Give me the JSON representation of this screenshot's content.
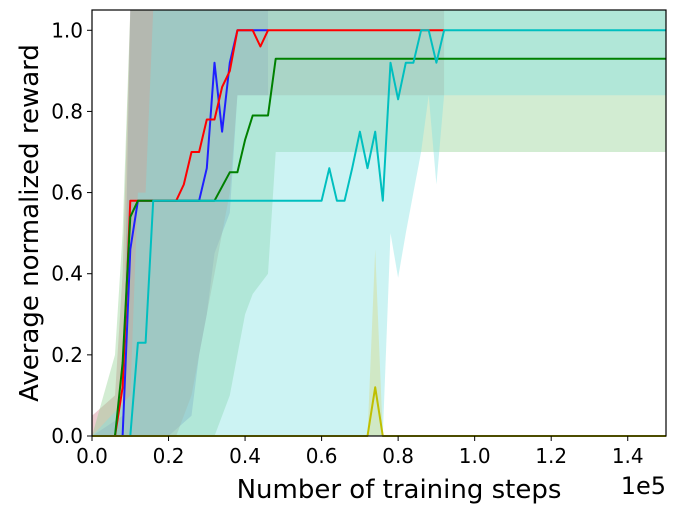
{
  "chart_data": {
    "type": "line",
    "xlabel": "Number of training steps",
    "ylabel": "Average normalized reward",
    "x_scale_label": "1e5",
    "xlim": [
      0,
      150000
    ],
    "ylim": [
      0,
      1.05
    ],
    "x_ticks": [
      0,
      20000,
      40000,
      60000,
      80000,
      100000,
      120000,
      140000
    ],
    "x_tick_labels": [
      "0.0",
      "0.2",
      "0.4",
      "0.6",
      "0.8",
      "1.0",
      "1.2",
      "1.4"
    ],
    "y_ticks": [
      0,
      0.2,
      0.4,
      0.6,
      0.8,
      1.0
    ],
    "y_tick_labels": [
      "0.0",
      "0.2",
      "0.4",
      "0.6",
      "0.8",
      "1.0"
    ],
    "grid": false,
    "series": [
      {
        "color": "#1f1fff",
        "band_color": "#7d6ad6",
        "x": [
          0,
          8000,
          10000,
          12000,
          14000,
          16000,
          20000,
          26000,
          28000,
          30000,
          32000,
          34000,
          36000,
          38000,
          42000,
          44000,
          46000
        ],
        "y": [
          0,
          0,
          0.46,
          0.58,
          0.58,
          0.58,
          0.58,
          0.58,
          0.58,
          0.66,
          0.92,
          0.75,
          0.92,
          1.0,
          1.0,
          1.0,
          1.0
        ],
        "lower": [
          0,
          0,
          0,
          0,
          0,
          0,
          0,
          0.05,
          0.2,
          0.3,
          0.45,
          0.5,
          0.55,
          0.84,
          0.84,
          0.84,
          0.84
        ],
        "upper": [
          0,
          0.05,
          1.05,
          1.05,
          1.05,
          1.05,
          1.05,
          1.05,
          1.05,
          1.05,
          1.05,
          1.05,
          1.05,
          1.05,
          1.05,
          1.05,
          1.05
        ]
      },
      {
        "color": "#ff0000",
        "band_color": "#d17f8c",
        "x": [
          0,
          6000,
          8000,
          10000,
          12000,
          14000,
          18000,
          22000,
          24000,
          26000,
          28000,
          30000,
          32000,
          34000,
          36000,
          38000,
          42000,
          44000,
          46000,
          92000
        ],
        "y": [
          0,
          0,
          0.12,
          0.58,
          0.58,
          0.58,
          0.58,
          0.58,
          0.62,
          0.7,
          0.7,
          0.78,
          0.78,
          0.86,
          0.9,
          1.0,
          1.0,
          0.96,
          1.0,
          1.0
        ],
        "lower": [
          0,
          0,
          0,
          0,
          0,
          0,
          0,
          0,
          0.05,
          0.1,
          0.2,
          0.3,
          0.4,
          0.5,
          0.6,
          0.84,
          0.84,
          0.84,
          0.84,
          0.84
        ],
        "upper": [
          0.05,
          0.1,
          0.4,
          1.05,
          1.05,
          1.05,
          1.05,
          1.05,
          1.05,
          1.05,
          1.05,
          1.05,
          1.05,
          1.05,
          1.05,
          1.05,
          1.05,
          1.05,
          1.05,
          1.05
        ]
      },
      {
        "color": "#008000",
        "band_color": "#8fcf8f",
        "x": [
          0,
          6000,
          8000,
          10000,
          12000,
          16000,
          30000,
          32000,
          36000,
          38000,
          40000,
          42000,
          46000,
          48000,
          150000
        ],
        "y": [
          0,
          0,
          0.18,
          0.54,
          0.58,
          0.58,
          0.58,
          0.58,
          0.65,
          0.65,
          0.73,
          0.79,
          0.79,
          0.93,
          0.93
        ],
        "lower": [
          0,
          0,
          0,
          0,
          0,
          0,
          0,
          0,
          0.1,
          0.2,
          0.3,
          0.35,
          0.4,
          0.7,
          0.7
        ],
        "upper": [
          0,
          0.2,
          0.5,
          1.05,
          1.05,
          1.05,
          1.05,
          1.05,
          1.05,
          1.05,
          1.05,
          1.05,
          1.05,
          1.05,
          1.05
        ]
      },
      {
        "color": "#00bfbf",
        "band_color": "#80e0e0",
        "x": [
          0,
          10000,
          12000,
          14000,
          16000,
          60000,
          62000,
          64000,
          66000,
          68000,
          70000,
          72000,
          74000,
          76000,
          78000,
          80000,
          82000,
          84000,
          86000,
          88000,
          90000,
          92000,
          150000
        ],
        "y": [
          0,
          0,
          0.23,
          0.23,
          0.58,
          0.58,
          0.66,
          0.58,
          0.58,
          0.66,
          0.75,
          0.66,
          0.75,
          0.58,
          0.92,
          0.83,
          0.92,
          0.92,
          1.0,
          1.0,
          0.92,
          1.0,
          1.0
        ],
        "lower": [
          0,
          0,
          0,
          0,
          0,
          0,
          0,
          0,
          0,
          0,
          0,
          0,
          0,
          0,
          0.5,
          0.39,
          0.5,
          0.6,
          0.7,
          0.84,
          0.62,
          0.84,
          0.84
        ],
        "upper": [
          0,
          0.1,
          0.6,
          0.6,
          1.05,
          1.05,
          1.05,
          1.05,
          1.05,
          1.05,
          1.05,
          1.05,
          1.05,
          1.05,
          1.05,
          1.05,
          1.05,
          1.05,
          1.05,
          1.05,
          1.05,
          1.05,
          1.05
        ]
      },
      {
        "color": "#bfbf00",
        "band_color": "#d8d880",
        "x": [
          0,
          72000,
          74000,
          76000,
          150000
        ],
        "y": [
          0,
          0,
          0.12,
          0,
          0
        ],
        "lower": [
          0,
          0,
          0,
          0,
          0
        ],
        "upper": [
          0,
          0,
          0.46,
          0,
          0
        ]
      }
    ]
  }
}
